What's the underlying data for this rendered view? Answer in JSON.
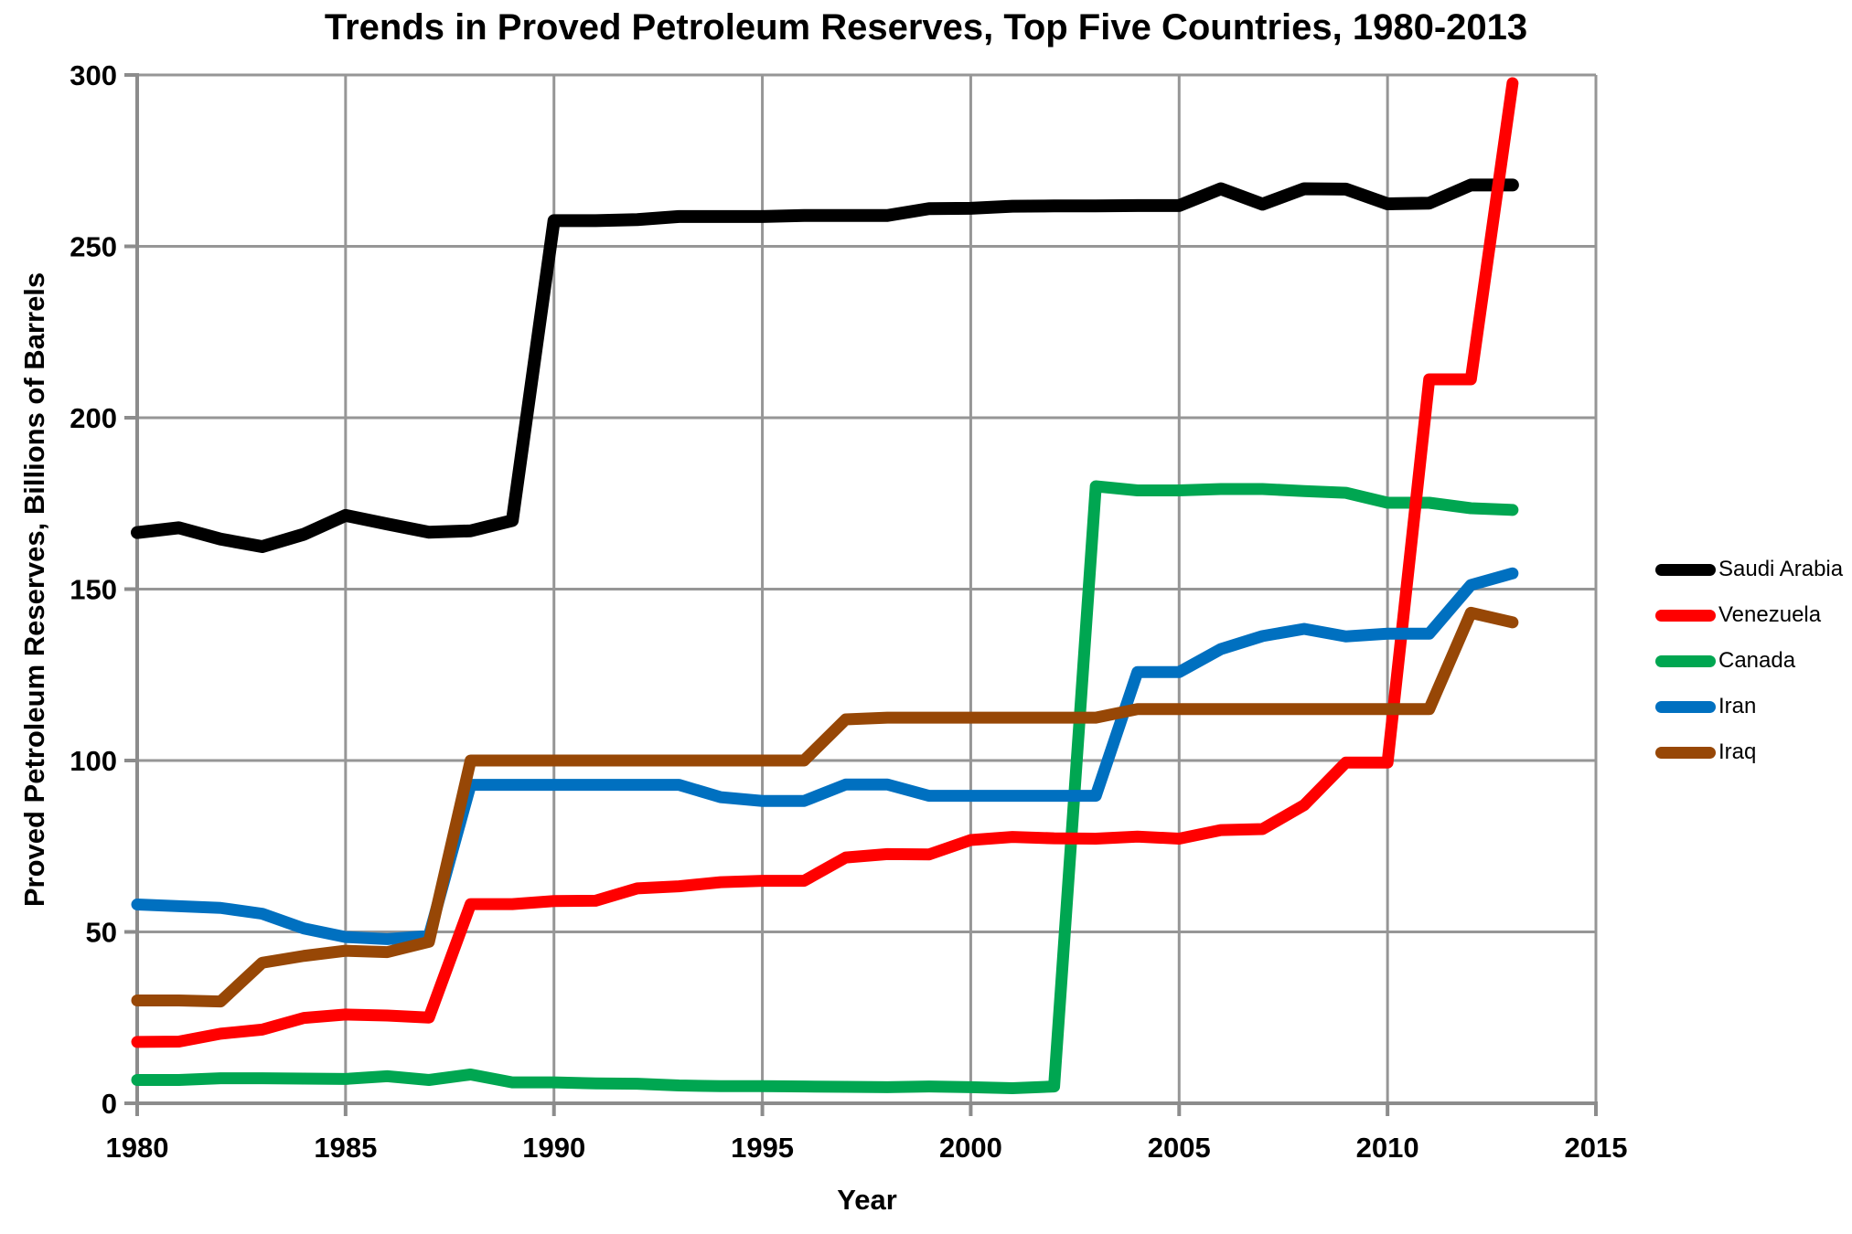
{
  "chart_data": {
    "type": "line",
    "title": "Trends in Proved Petroleum Reserves, Top Five Countries, 1980-2013",
    "xlabel": "Year",
    "ylabel": "Proved Petroleum Reserves, Billions of Barrels",
    "xlim": [
      1980,
      2015
    ],
    "ylim": [
      0,
      300
    ],
    "xticks": [
      1980,
      1985,
      1990,
      1995,
      2000,
      2005,
      2010,
      2015
    ],
    "yticks": [
      0,
      50,
      100,
      150,
      200,
      250,
      300
    ],
    "grid": true,
    "legend_position": "right",
    "x": [
      1980,
      1981,
      1982,
      1983,
      1984,
      1985,
      1986,
      1987,
      1988,
      1989,
      1990,
      1991,
      1992,
      1993,
      1994,
      1995,
      1996,
      1997,
      1998,
      1999,
      2000,
      2001,
      2002,
      2003,
      2004,
      2005,
      2006,
      2007,
      2008,
      2009,
      2010,
      2011,
      2012,
      2013
    ],
    "series": [
      {
        "name": "Saudi Arabia",
        "color": "#000000",
        "values": [
          166.5,
          167.9,
          164.6,
          162.4,
          166.0,
          171.5,
          169.0,
          166.6,
          167.0,
          170.0,
          257.5,
          257.5,
          257.8,
          258.7,
          258.7,
          258.7,
          259.0,
          259.0,
          259.0,
          261.0,
          261.1,
          261.7,
          261.8,
          261.8,
          261.9,
          261.9,
          266.8,
          262.3,
          266.8,
          266.7,
          262.4,
          262.6,
          267.9,
          267.9
        ]
      },
      {
        "name": "Venezuela",
        "color": "#FF0000",
        "values": [
          17.9,
          18.0,
          20.3,
          21.5,
          24.9,
          25.9,
          25.6,
          25.0,
          58.1,
          58.1,
          59.0,
          59.1,
          62.7,
          63.3,
          64.5,
          64.9,
          64.9,
          71.7,
          72.7,
          72.6,
          76.8,
          77.7,
          77.3,
          77.2,
          77.8,
          77.2,
          79.7,
          80.0,
          87.0,
          99.4,
          99.4,
          211.2,
          211.2,
          297.6
        ]
      },
      {
        "name": "Canada",
        "color": "#00A651",
        "values": [
          6.8,
          6.8,
          7.3,
          7.3,
          7.2,
          7.1,
          7.9,
          6.8,
          8.4,
          6.1,
          6.1,
          5.8,
          5.7,
          5.2,
          5.0,
          5.0,
          4.9,
          4.8,
          4.7,
          4.9,
          4.7,
          4.4,
          4.9,
          180.0,
          178.8,
          178.8,
          179.2,
          179.2,
          178.6,
          178.1,
          175.2,
          175.2,
          173.6,
          173.1
        ]
      },
      {
        "name": "Iran",
        "color": "#0070C0",
        "values": [
          58.0,
          57.5,
          57.0,
          55.3,
          51.0,
          48.5,
          47.9,
          48.8,
          92.9,
          92.9,
          92.9,
          92.9,
          92.9,
          92.9,
          89.3,
          88.2,
          88.2,
          93.0,
          93.0,
          89.7,
          89.7,
          89.7,
          89.7,
          89.7,
          125.8,
          125.8,
          132.5,
          136.3,
          138.4,
          136.2,
          137.0,
          137.0,
          151.2,
          154.6
        ]
      },
      {
        "name": "Iraq",
        "color": "#974706",
        "values": [
          30.0,
          30.0,
          29.7,
          41.0,
          43.0,
          44.5,
          44.1,
          47.1,
          100.0,
          100.0,
          100.0,
          100.0,
          100.0,
          100.0,
          100.0,
          100.0,
          100.0,
          112.0,
          112.5,
          112.5,
          112.5,
          112.5,
          112.5,
          112.5,
          115.0,
          115.0,
          115.0,
          115.0,
          115.0,
          115.0,
          115.0,
          115.0,
          143.1,
          140.3
        ]
      }
    ]
  },
  "styles": {
    "background": "#FFFFFF",
    "grid_color": "#969696",
    "axis_color": "#8C8C8C",
    "text_color": "#000000"
  }
}
